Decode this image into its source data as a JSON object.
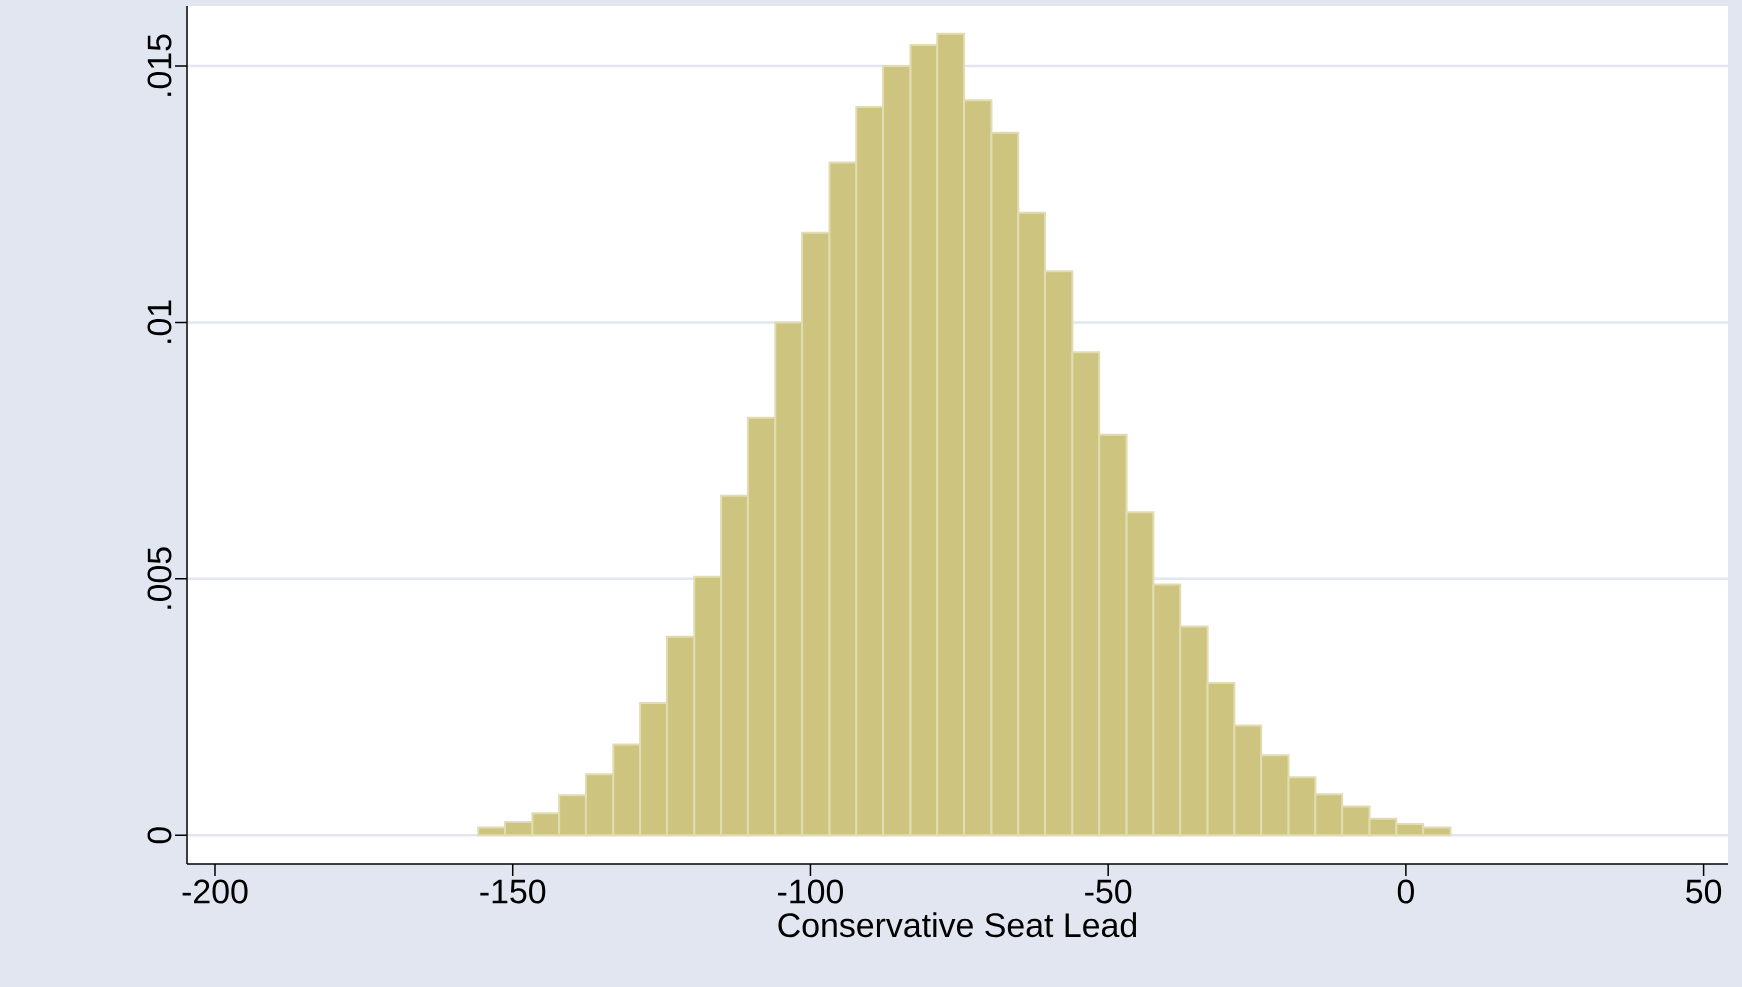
{
  "chart_data": {
    "type": "histogram",
    "xlabel": "Conservative Seat Lead",
    "bins": [
      -155.8,
      -151.3,
      -146.7,
      -142.2,
      -137.7,
      -133.1,
      -128.6,
      -124.1,
      -119.5,
      -115.0,
      -110.5,
      -105.9,
      -101.4,
      -96.8,
      -92.3,
      -87.8,
      -83.2,
      -78.7,
      -74.2,
      -69.6,
      -65.1,
      -60.6,
      -56.0,
      -51.5,
      -46.9,
      -42.4,
      -37.9,
      -33.3,
      -28.8,
      -24.3,
      -19.7,
      -15.2,
      -10.7,
      -6.1,
      -1.6,
      2.9,
      7.5
    ],
    "values": [
      0.00015,
      0.00026,
      0.00043,
      0.00078,
      0.00119,
      0.00177,
      0.00258,
      0.00387,
      0.00504,
      0.00662,
      0.00814,
      0.01,
      0.01175,
      0.01312,
      0.0142,
      0.015,
      0.01541,
      0.01563,
      0.01433,
      0.0137,
      0.01214,
      0.011,
      0.00942,
      0.00781,
      0.0063,
      0.00489,
      0.00407,
      0.00297,
      0.00214,
      0.00156,
      0.00113,
      0.0008,
      0.00056,
      0.00032,
      0.00022,
      0.00015
    ],
    "color": "#cdc47f",
    "xlim": [
      -204.7,
      54.1
    ],
    "ylim": [
      -0.00056,
      0.01617
    ],
    "xticks": [
      -200,
      -150,
      -100,
      -50,
      0,
      50
    ],
    "yticks": [
      0,
      {
        "value": 0.005,
        "label": ".005"
      },
      {
        "value": 0.01,
        "label": ".01"
      },
      {
        "value": 0.015,
        "label": ".015"
      }
    ],
    "grid": "y"
  }
}
